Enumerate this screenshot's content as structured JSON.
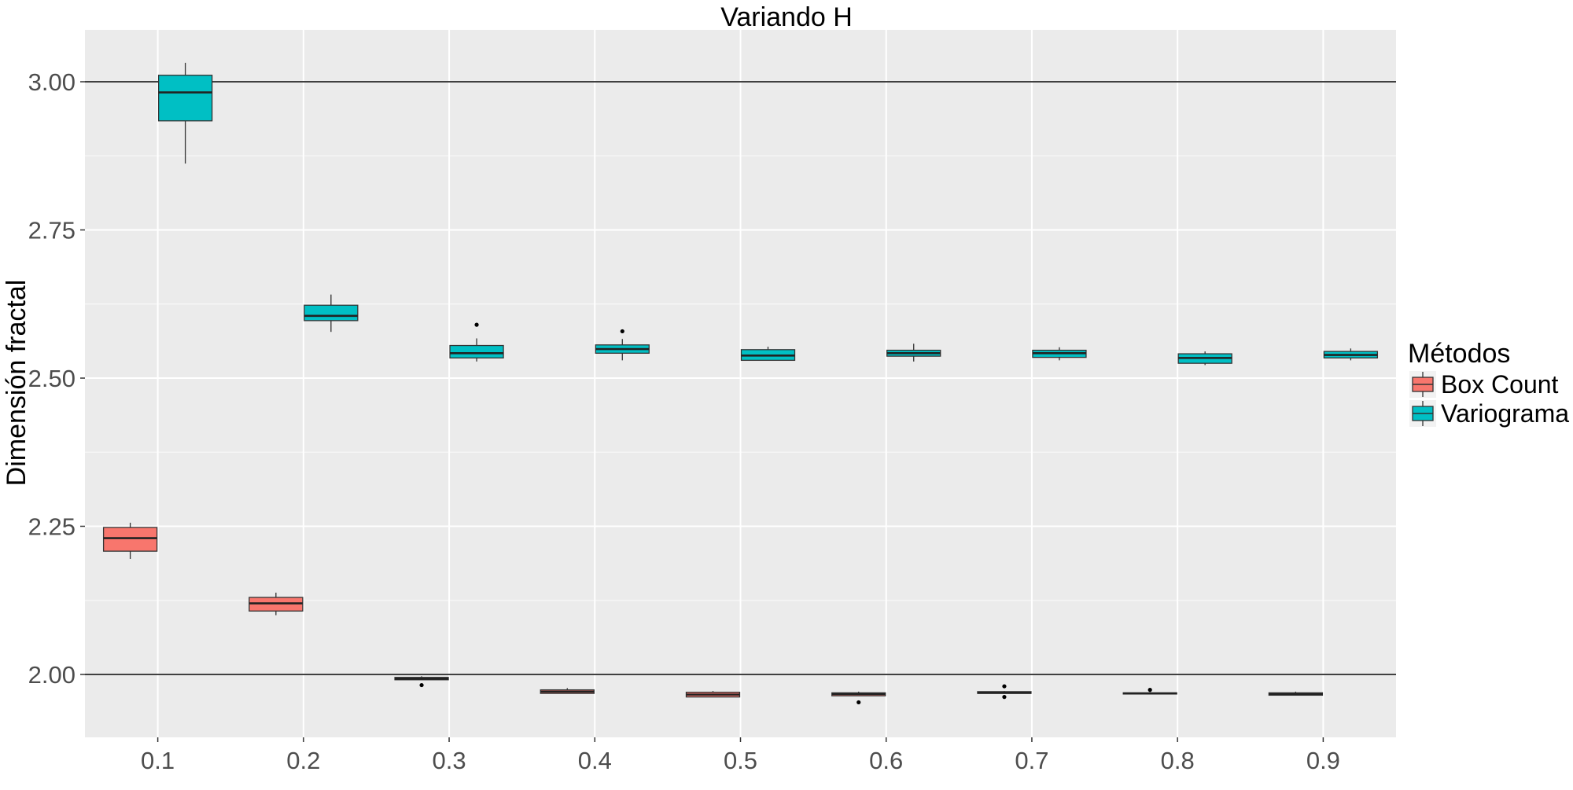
{
  "chart_data": {
    "type": "boxplot",
    "title": "Variando H",
    "xlabel": "",
    "ylabel": "Dimensión fractal",
    "categories": [
      "0.1",
      "0.2",
      "0.3",
      "0.4",
      "0.5",
      "0.6",
      "0.7",
      "0.8",
      "0.9"
    ],
    "ylim": [
      1.9,
      3.09
    ],
    "yticks": [
      2.0,
      2.25,
      2.5,
      2.75,
      3.0
    ],
    "ytick_labels": [
      "2.00",
      "2.25",
      "2.50",
      "2.75",
      "3.00"
    ],
    "reference_lines": [
      2.0,
      3.0
    ],
    "grid": true,
    "legend": {
      "title": "Métodos",
      "position": "right"
    },
    "series": [
      {
        "name": "Box Count",
        "color": "#F8766D",
        "boxes": [
          {
            "category": "0.1",
            "whisker_low": 2.195,
            "q1": 2.208,
            "median": 2.23,
            "q3": 2.248,
            "whisker_high": 2.256,
            "outliers": []
          },
          {
            "category": "0.2",
            "whisker_low": 2.1,
            "q1": 2.107,
            "median": 2.12,
            "q3": 2.13,
            "whisker_high": 2.138,
            "outliers": []
          },
          {
            "category": "0.3",
            "whisker_low": 1.991,
            "q1": 1.991,
            "median": 1.993,
            "q3": 1.995,
            "whisker_high": 1.997,
            "outliers": [
              1.982
            ]
          },
          {
            "category": "0.4",
            "whisker_low": 1.968,
            "q1": 1.968,
            "median": 1.971,
            "q3": 1.974,
            "whisker_high": 1.977,
            "outliers": []
          },
          {
            "category": "0.5",
            "whisker_low": 1.962,
            "q1": 1.962,
            "median": 1.966,
            "q3": 1.97,
            "whisker_high": 1.972,
            "outliers": []
          },
          {
            "category": "0.6",
            "whisker_low": 1.964,
            "q1": 1.964,
            "median": 1.967,
            "q3": 1.969,
            "whisker_high": 1.971,
            "outliers": [
              1.953
            ]
          },
          {
            "category": "0.7",
            "whisker_low": 1.968,
            "q1": 1.968,
            "median": 1.969,
            "q3": 1.971,
            "whisker_high": 1.972,
            "outliers": [
              1.98,
              1.962
            ]
          },
          {
            "category": "0.8",
            "whisker_low": 1.967,
            "q1": 1.967,
            "median": 1.968,
            "q3": 1.969,
            "whisker_high": 1.97,
            "outliers": [
              1.974
            ]
          },
          {
            "category": "0.9",
            "whisker_low": 1.965,
            "q1": 1.965,
            "median": 1.967,
            "q3": 1.969,
            "whisker_high": 1.971,
            "outliers": []
          }
        ]
      },
      {
        "name": "Variograma",
        "color": "#00BFC4",
        "boxes": [
          {
            "category": "0.1",
            "whisker_low": 2.862,
            "q1": 2.934,
            "median": 2.982,
            "q3": 3.011,
            "whisker_high": 3.032,
            "outliers": []
          },
          {
            "category": "0.2",
            "whisker_low": 2.578,
            "q1": 2.597,
            "median": 2.605,
            "q3": 2.623,
            "whisker_high": 2.641,
            "outliers": []
          },
          {
            "category": "0.3",
            "whisker_low": 2.528,
            "q1": 2.534,
            "median": 2.542,
            "q3": 2.555,
            "whisker_high": 2.567,
            "outliers": [
              2.59
            ]
          },
          {
            "category": "0.4",
            "whisker_low": 2.53,
            "q1": 2.542,
            "median": 2.549,
            "q3": 2.556,
            "whisker_high": 2.566,
            "outliers": [
              2.579
            ]
          },
          {
            "category": "0.5",
            "whisker_low": 2.53,
            "q1": 2.53,
            "median": 2.538,
            "q3": 2.548,
            "whisker_high": 2.553,
            "outliers": []
          },
          {
            "category": "0.6",
            "whisker_low": 2.528,
            "q1": 2.537,
            "median": 2.542,
            "q3": 2.547,
            "whisker_high": 2.558,
            "outliers": []
          },
          {
            "category": "0.7",
            "whisker_low": 2.53,
            "q1": 2.535,
            "median": 2.542,
            "q3": 2.547,
            "whisker_high": 2.552,
            "outliers": []
          },
          {
            "category": "0.8",
            "whisker_low": 2.522,
            "q1": 2.525,
            "median": 2.534,
            "q3": 2.541,
            "whisker_high": 2.545,
            "outliers": []
          },
          {
            "category": "0.9",
            "whisker_low": 2.53,
            "q1": 2.534,
            "median": 2.539,
            "q3": 2.545,
            "whisker_high": 2.55,
            "outliers": []
          }
        ]
      }
    ]
  }
}
